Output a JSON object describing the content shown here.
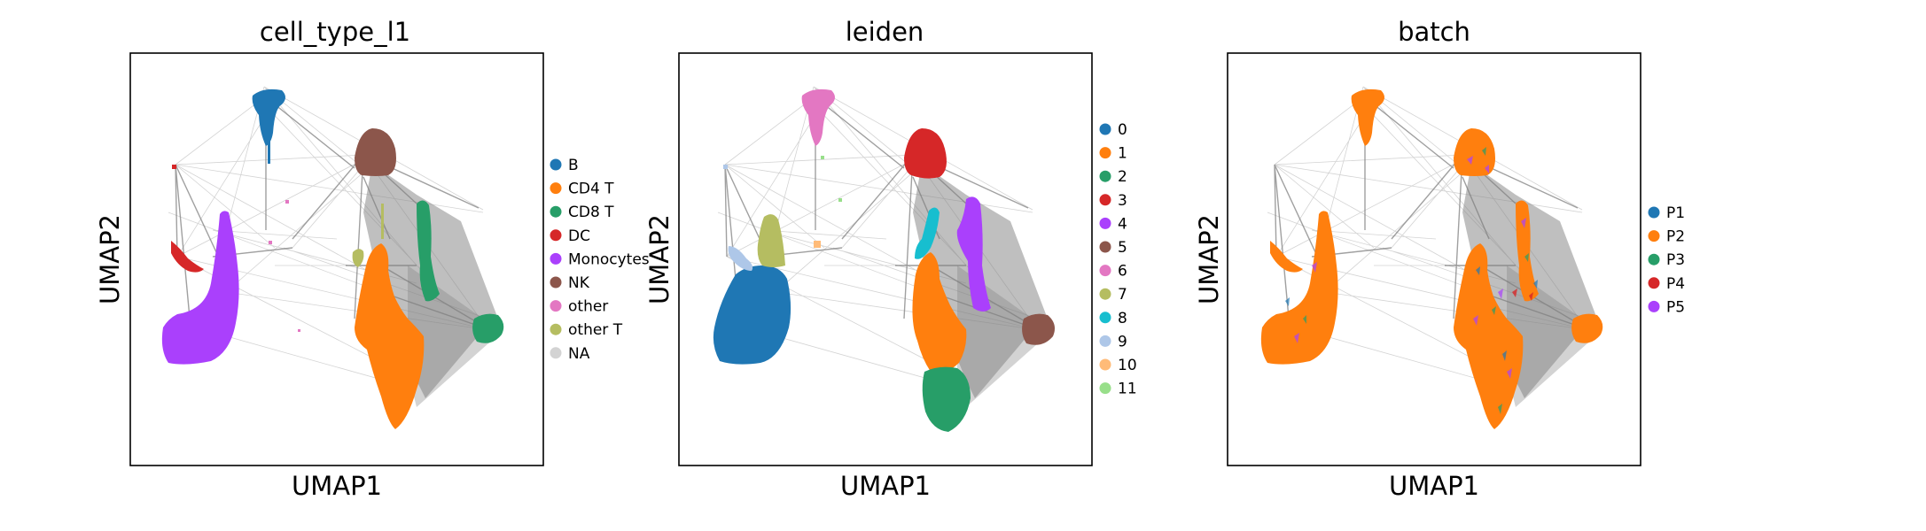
{
  "chart_data": [
    {
      "type": "scatter",
      "title": "cell_type_l1",
      "xlabel": "UMAP1",
      "ylabel": "UMAP2",
      "grid": false,
      "legend_position": "right",
      "legend": [
        {
          "name": "B",
          "color": "#1f77b4"
        },
        {
          "name": "CD4 T",
          "color": "#ff7f0e"
        },
        {
          "name": "CD8 T",
          "color": "#279e68"
        },
        {
          "name": "DC",
          "color": "#d62728"
        },
        {
          "name": "Monocytes",
          "color": "#aa40fc"
        },
        {
          "name": "NK",
          "color": "#8c564b"
        },
        {
          "name": "other",
          "color": "#e377c2"
        },
        {
          "name": "other T",
          "color": "#b5bd61"
        },
        {
          "name": "NA",
          "color": "#d3d3d3"
        }
      ]
    },
    {
      "type": "scatter",
      "title": "leiden",
      "xlabel": "UMAP1",
      "ylabel": "UMAP2",
      "grid": false,
      "legend_position": "right",
      "legend": [
        {
          "name": "0",
          "color": "#1f77b4"
        },
        {
          "name": "1",
          "color": "#ff7f0e"
        },
        {
          "name": "2",
          "color": "#279e68"
        },
        {
          "name": "3",
          "color": "#d62728"
        },
        {
          "name": "4",
          "color": "#aa40fc"
        },
        {
          "name": "5",
          "color": "#8c564b"
        },
        {
          "name": "6",
          "color": "#e377c2"
        },
        {
          "name": "7",
          "color": "#b5bd61"
        },
        {
          "name": "8",
          "color": "#17becf"
        },
        {
          "name": "9",
          "color": "#aec7e8"
        },
        {
          "name": "10",
          "color": "#ffbb78"
        },
        {
          "name": "11",
          "color": "#98df8a"
        }
      ]
    },
    {
      "type": "scatter",
      "title": "batch",
      "xlabel": "UMAP1",
      "ylabel": "UMAP2",
      "grid": false,
      "legend_position": "right",
      "legend": [
        {
          "name": "P1",
          "color": "#1f77b4"
        },
        {
          "name": "P2",
          "color": "#ff7f0e"
        },
        {
          "name": "P3",
          "color": "#279e68"
        },
        {
          "name": "P4",
          "color": "#d62728"
        },
        {
          "name": "P5",
          "color": "#aa40fc"
        }
      ]
    }
  ]
}
